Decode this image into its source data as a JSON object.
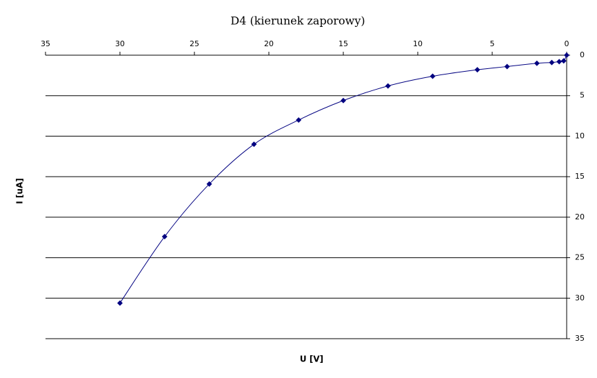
{
  "chart_data": {
    "type": "scatter",
    "title": "D4 (kierunek zaporowy)",
    "x_label": "U [V]",
    "y_label": "I [uA]",
    "x": [
      30,
      27,
      24,
      21,
      18,
      15,
      12,
      9,
      6,
      4,
      2,
      1,
      0.5,
      0.2,
      0
    ],
    "values": [
      30.6,
      22.4,
      15.9,
      11.0,
      8.0,
      5.6,
      3.8,
      2.6,
      1.8,
      1.4,
      1.0,
      0.9,
      0.8,
      0.7,
      0
    ],
    "color": "#000080",
    "marker": "diamond",
    "smooth_line": true,
    "xlim": [
      0,
      35
    ],
    "xticks": [
      0,
      5,
      10,
      15,
      20,
      25,
      30,
      35
    ],
    "x_reversed": true,
    "x_axis_position": "top",
    "ylim": [
      0,
      35
    ],
    "yticks": [
      0,
      5,
      10,
      15,
      20,
      25,
      30,
      35
    ],
    "y_reversed": true,
    "y_axis_position": "right",
    "grid": true
  }
}
